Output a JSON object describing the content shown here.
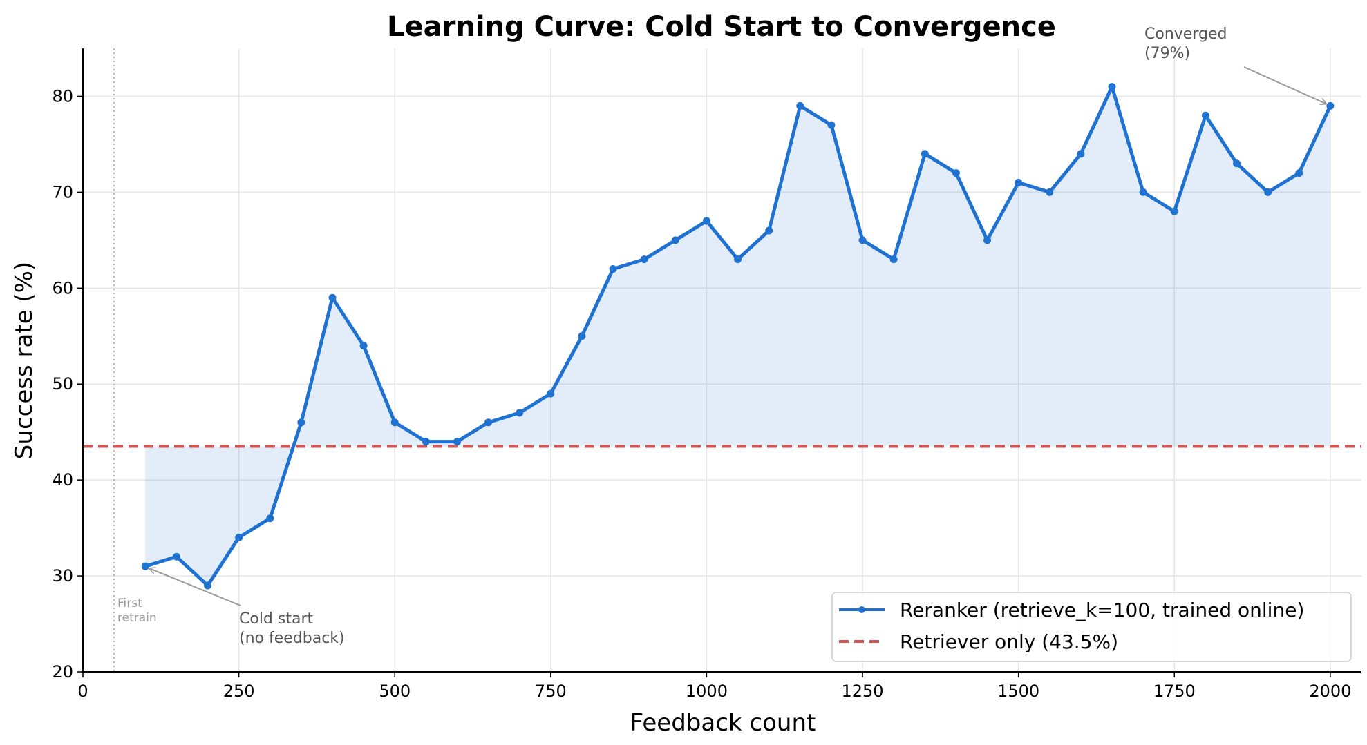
{
  "chart_data": {
    "type": "line",
    "title": "Learning Curve: Cold Start to Convergence",
    "xlabel": "Feedback count",
    "ylabel": "Success rate (%)",
    "xlim": [
      0,
      2050
    ],
    "ylim": [
      20,
      85
    ],
    "xticks": [
      0,
      250,
      500,
      750,
      1000,
      1250,
      1500,
      1750,
      2000
    ],
    "yticks": [
      20,
      30,
      40,
      50,
      60,
      70,
      80
    ],
    "grid": true,
    "legend_position": "bottom-right",
    "series": [
      {
        "name": "Reranker (retrieve_k=100, trained online)",
        "color": "#1f72d1",
        "x": [
          100,
          150,
          200,
          250,
          300,
          350,
          400,
          450,
          500,
          550,
          600,
          650,
          700,
          750,
          800,
          850,
          900,
          950,
          1000,
          1050,
          1100,
          1150,
          1200,
          1250,
          1300,
          1350,
          1400,
          1450,
          1500,
          1550,
          1600,
          1650,
          1700,
          1750,
          1800,
          1850,
          1900,
          1950,
          2000
        ],
        "y": [
          31,
          32,
          29,
          34,
          36,
          46,
          59,
          54,
          46,
          44,
          44,
          46,
          47,
          49,
          55,
          62,
          63,
          65,
          67,
          63,
          66,
          79,
          77,
          65,
          63,
          74,
          72,
          65,
          71,
          70,
          74,
          81,
          70,
          68,
          78,
          73,
          70,
          72,
          79
        ]
      }
    ],
    "baseline": {
      "name": "Retriever only (43.5%)",
      "value": 43.5,
      "color": "#d9534f"
    },
    "vline": {
      "x": 50,
      "label_line1": "First",
      "label_line2": "retrain"
    },
    "annotations": [
      {
        "text_line1": "Cold start",
        "text_line2": "(no feedback)",
        "target_x": 100,
        "target_y": 31
      },
      {
        "text_line1": "Converged",
        "text_line2": "(79%)",
        "target_x": 2000,
        "target_y": 79
      }
    ]
  }
}
